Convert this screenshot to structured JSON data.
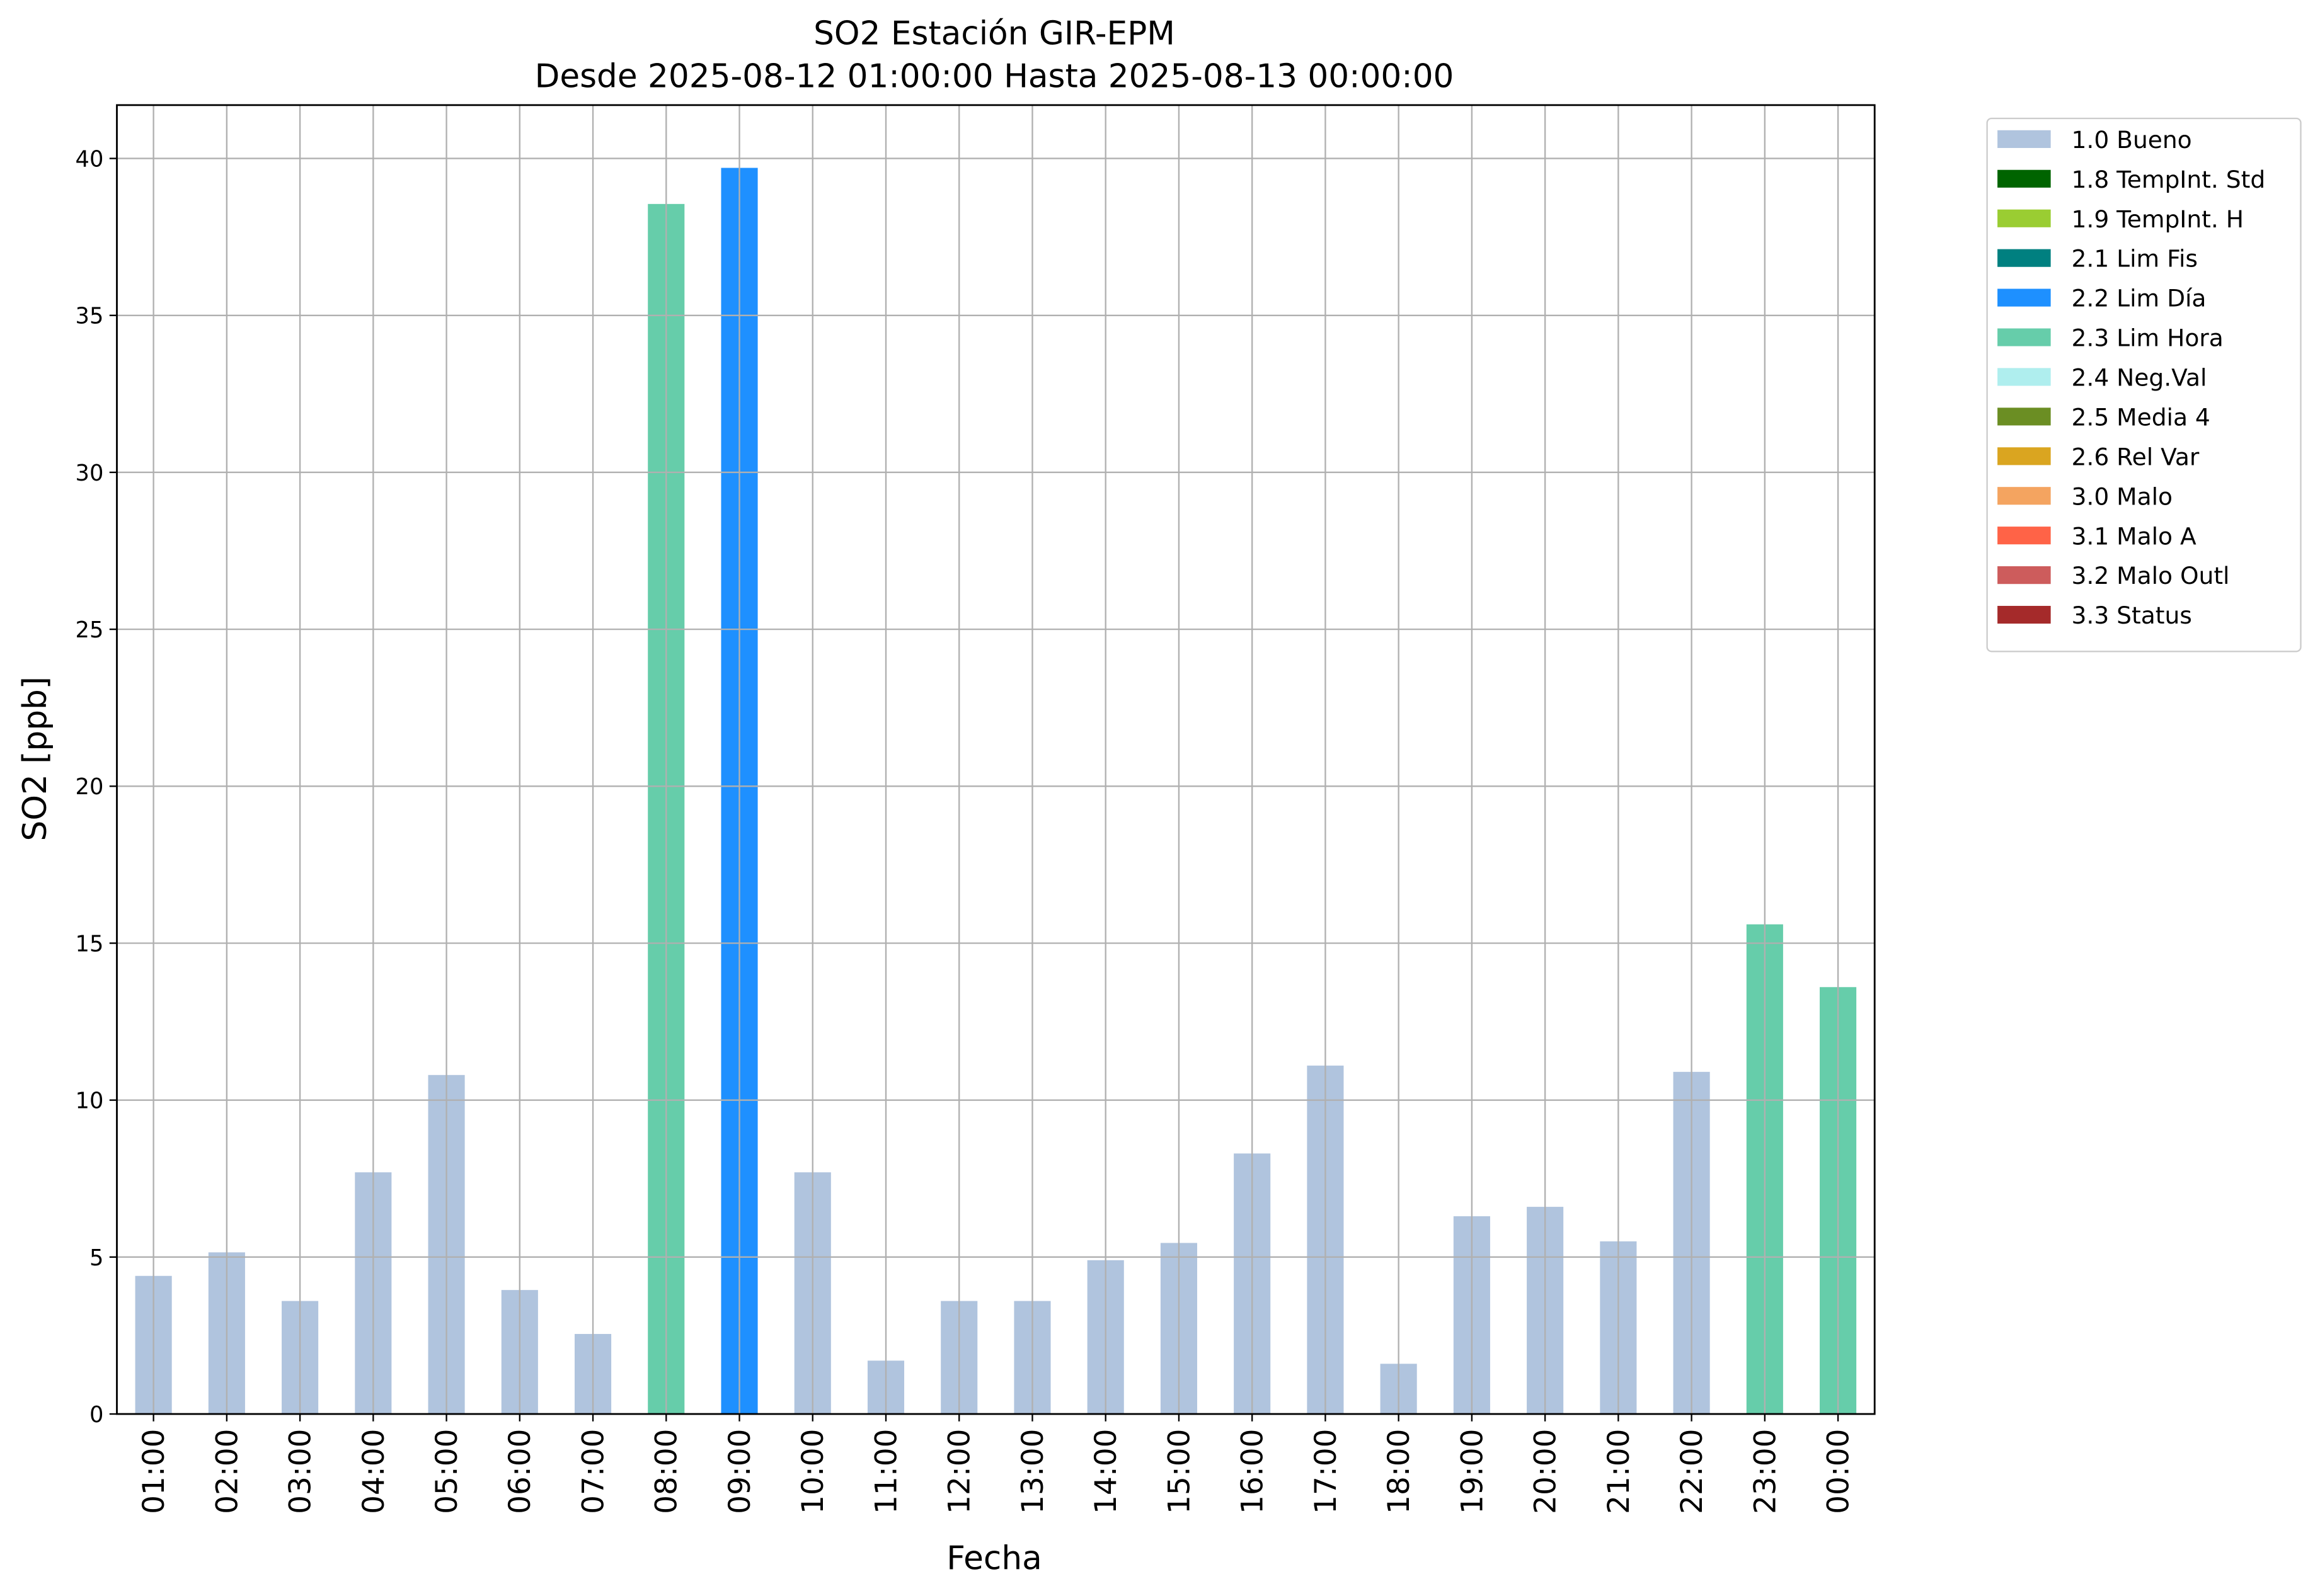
{
  "chart_data": {
    "type": "bar",
    "title": "SO2 Estación GIR-EPM",
    "subtitle": "Desde 2025-08-12 01:00:00 Hasta 2025-08-13 00:00:00",
    "x_label": "Fecha",
    "y_label": "SO2 [ppb]",
    "categories": [
      "01:00",
      "02:00",
      "03:00",
      "04:00",
      "05:00",
      "06:00",
      "07:00",
      "08:00",
      "09:00",
      "10:00",
      "11:00",
      "12:00",
      "13:00",
      "14:00",
      "15:00",
      "16:00",
      "17:00",
      "18:00",
      "19:00",
      "20:00",
      "21:00",
      "22:00",
      "23:00",
      "00:00"
    ],
    "series": [
      {
        "name": "1.0 Bueno",
        "color": "#b0c4de",
        "values": [
          4.4,
          5.15,
          3.6,
          7.7,
          10.8,
          3.95,
          2.55,
          null,
          null,
          7.7,
          1.7,
          3.6,
          3.6,
          4.9,
          5.45,
          8.3,
          11.1,
          1.6,
          6.3,
          6.6,
          5.5,
          10.9,
          null,
          null
        ]
      },
      {
        "name": "1.8 TempInt. Std",
        "color": "#006400",
        "values": [
          null,
          null,
          null,
          null,
          null,
          null,
          null,
          null,
          null,
          null,
          null,
          null,
          null,
          null,
          null,
          null,
          null,
          null,
          null,
          null,
          null,
          null,
          null,
          null
        ]
      },
      {
        "name": "1.9 TempInt. H",
        "color": "#9acd32",
        "values": [
          null,
          null,
          null,
          null,
          null,
          null,
          null,
          null,
          null,
          null,
          null,
          null,
          null,
          null,
          null,
          null,
          null,
          null,
          null,
          null,
          null,
          null,
          null,
          null
        ]
      },
      {
        "name": "2.1 Lim Fis",
        "color": "#008080",
        "values": [
          null,
          null,
          null,
          null,
          null,
          null,
          null,
          null,
          null,
          null,
          null,
          null,
          null,
          null,
          null,
          null,
          null,
          null,
          null,
          null,
          null,
          null,
          null,
          null
        ]
      },
      {
        "name": "2.2 Lim Día",
        "color": "#1e90ff",
        "values": [
          null,
          null,
          null,
          null,
          null,
          null,
          null,
          null,
          39.7,
          null,
          null,
          null,
          null,
          null,
          null,
          null,
          null,
          null,
          null,
          null,
          null,
          null,
          null,
          null
        ]
      },
      {
        "name": "2.3 Lim Hora",
        "color": "#66cdaa",
        "values": [
          null,
          null,
          null,
          null,
          null,
          null,
          null,
          38.55,
          null,
          null,
          null,
          null,
          null,
          null,
          null,
          null,
          null,
          null,
          null,
          null,
          null,
          null,
          15.6,
          13.6
        ]
      },
      {
        "name": "2.4 Neg.Val",
        "color": "#afeeee",
        "values": [
          null,
          null,
          null,
          null,
          null,
          null,
          null,
          null,
          null,
          null,
          null,
          null,
          null,
          null,
          null,
          null,
          null,
          null,
          null,
          null,
          null,
          null,
          null,
          null
        ]
      },
      {
        "name": "2.5 Media 4",
        "color": "#6b8e23",
        "values": [
          null,
          null,
          null,
          null,
          null,
          null,
          null,
          null,
          null,
          null,
          null,
          null,
          null,
          null,
          null,
          null,
          null,
          null,
          null,
          null,
          null,
          null,
          null,
          null
        ]
      },
      {
        "name": "2.6 Rel Var",
        "color": "#daa520",
        "values": [
          null,
          null,
          null,
          null,
          null,
          null,
          null,
          null,
          null,
          null,
          null,
          null,
          null,
          null,
          null,
          null,
          null,
          null,
          null,
          null,
          null,
          null,
          null,
          null
        ]
      },
      {
        "name": "3.0 Malo",
        "color": "#f4a460",
        "values": [
          null,
          null,
          null,
          null,
          null,
          null,
          null,
          null,
          null,
          null,
          null,
          null,
          null,
          null,
          null,
          null,
          null,
          null,
          null,
          null,
          null,
          null,
          null,
          null
        ]
      },
      {
        "name": "3.1 Malo A",
        "color": "#ff6347",
        "values": [
          null,
          null,
          null,
          null,
          null,
          null,
          null,
          null,
          null,
          null,
          null,
          null,
          null,
          null,
          null,
          null,
          null,
          null,
          null,
          null,
          null,
          null,
          null,
          null
        ]
      },
      {
        "name": "3.2 Malo Outl",
        "color": "#cd5c5c",
        "values": [
          null,
          null,
          null,
          null,
          null,
          null,
          null,
          null,
          null,
          null,
          null,
          null,
          null,
          null,
          null,
          null,
          null,
          null,
          null,
          null,
          null,
          null,
          null,
          null
        ]
      },
      {
        "name": "3.3 Status",
        "color": "#a52a2a",
        "values": [
          null,
          null,
          null,
          null,
          null,
          null,
          null,
          null,
          null,
          null,
          null,
          null,
          null,
          null,
          null,
          null,
          null,
          null,
          null,
          null,
          null,
          null,
          null,
          null
        ]
      }
    ],
    "ylim": [
      0,
      41.7
    ],
    "yticks": [
      0,
      5,
      10,
      15,
      20,
      25,
      30,
      35,
      40
    ],
    "grid": true,
    "legend": "outside-upper-right"
  }
}
